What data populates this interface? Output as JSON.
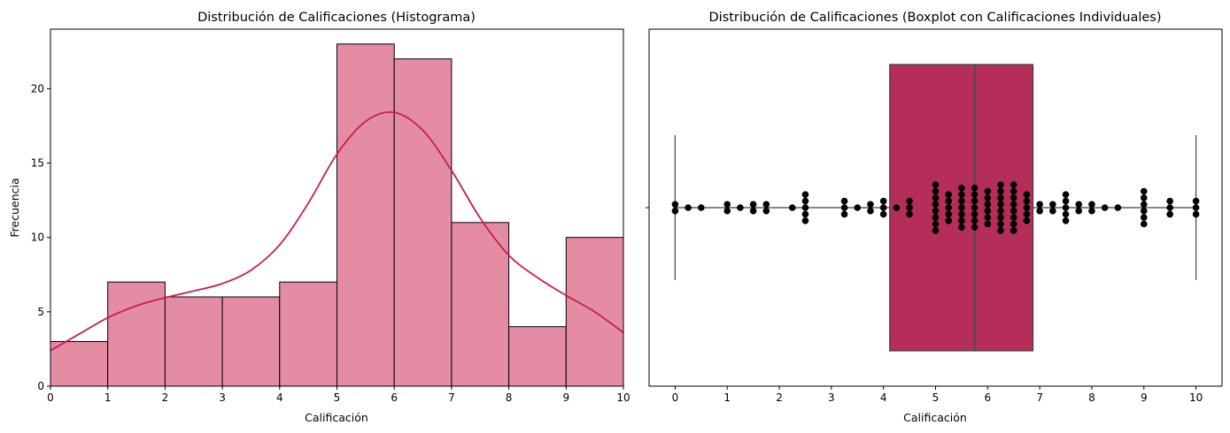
{
  "chart_data": [
    {
      "type": "bar",
      "title": "Distribución de Calificaciones (Histograma)",
      "xlabel": "Calificación",
      "ylabel": "Frecuencia",
      "xlim": [
        0,
        10
      ],
      "ylim": [
        0,
        24
      ],
      "xticks": [
        "0",
        "1",
        "2",
        "3",
        "4",
        "5",
        "6",
        "7",
        "8",
        "9",
        "10"
      ],
      "yticks": [
        "0",
        "5",
        "10",
        "15",
        "20"
      ],
      "bin_edges": [
        0,
        1,
        2,
        3,
        4,
        5,
        6,
        7,
        8,
        9,
        10
      ],
      "values": [
        3,
        7,
        6,
        6,
        7,
        23,
        22,
        11,
        4,
        10
      ],
      "bar_color": "#e48ca4",
      "edge_color": "#000000",
      "kde": {
        "color": "#c81d50",
        "x": [
          0,
          0.5,
          1,
          1.5,
          2,
          2.5,
          3,
          3.5,
          4,
          4.5,
          5,
          5.5,
          6,
          6.5,
          7,
          7.5,
          8,
          8.5,
          9,
          9.5,
          10
        ],
        "y": [
          2.4,
          3.5,
          4.6,
          5.4,
          5.95,
          6.4,
          6.9,
          7.8,
          9.5,
          12.3,
          15.6,
          17.8,
          18.4,
          17.2,
          14.5,
          11.3,
          8.8,
          7.3,
          6.1,
          5.0,
          3.6
        ]
      },
      "grid": false
    },
    {
      "type": "box",
      "title": "Distribución de Calificaciones (Boxplot con Calificaciones Individuales)",
      "xlabel": "Calificación",
      "xlim": [
        -0.5,
        10.5
      ],
      "xticks": [
        "0",
        "1",
        "2",
        "3",
        "4",
        "5",
        "6",
        "7",
        "8",
        "9",
        "10"
      ],
      "box": {
        "min": 0,
        "q1": 4.12,
        "median": 5.75,
        "q3": 6.87,
        "max": 10,
        "color": "#b52e5a"
      },
      "points": {
        "color": "#000000",
        "values": [
          0,
          0,
          0.25,
          0.5,
          1,
          1,
          1.25,
          1.5,
          1.5,
          1.75,
          1.75,
          2.25,
          2.5,
          2.5,
          2.5,
          2.5,
          2.5,
          3.25,
          3.25,
          3.25,
          3.5,
          3.75,
          3.75,
          4,
          4,
          4,
          4.25,
          4.5,
          4.5,
          4.5,
          5,
          5,
          5,
          5,
          5,
          5,
          5,
          5,
          5.25,
          5.25,
          5.25,
          5.25,
          5.25,
          5.5,
          5.5,
          5.5,
          5.5,
          5.5,
          5.5,
          5.5,
          5.75,
          5.75,
          5.75,
          5.75,
          5.75,
          5.75,
          5.75,
          6,
          6,
          6,
          6,
          6,
          6,
          6.25,
          6.25,
          6.25,
          6.25,
          6.25,
          6.25,
          6.25,
          6.25,
          6.5,
          6.5,
          6.5,
          6.5,
          6.5,
          6.5,
          6.5,
          6.5,
          6.75,
          6.75,
          6.75,
          6.75,
          6.75,
          7,
          7,
          7.25,
          7.25,
          7.5,
          7.5,
          7.5,
          7.5,
          7.5,
          7.75,
          7.75,
          8,
          8,
          8.25,
          8.5,
          9,
          9,
          9,
          9,
          9,
          9,
          9.5,
          9.5,
          9.5,
          10,
          10,
          10
        ]
      },
      "grid": false
    }
  ]
}
